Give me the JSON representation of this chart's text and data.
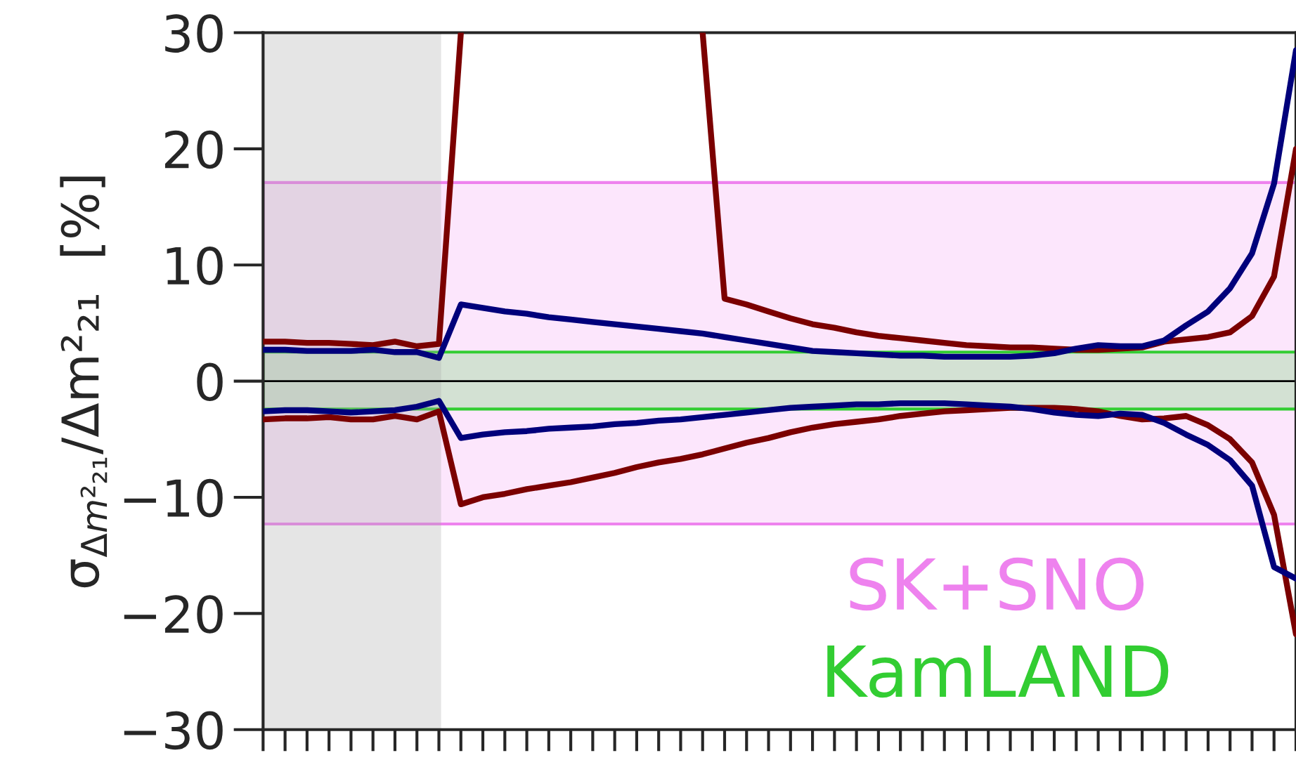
{
  "chart_data": {
    "type": "line",
    "ylabel": "σ$_{Δm²₂₁}$/Δm²₂₁  [%]",
    "categories": [
      null,
      null,
      null,
      null,
      null,
      null,
      null,
      null,
      null,
      null,
      null,
      null,
      null,
      null,
      null,
      null,
      null,
      null,
      null,
      null,
      null,
      null,
      null,
      null,
      null,
      null,
      null,
      null,
      null,
      null,
      null,
      null,
      null,
      null,
      null,
      null,
      null,
      null,
      null,
      null,
      null,
      null,
      null,
      null,
      null,
      null,
      null,
      null
    ],
    "ylim": [
      -30,
      30
    ],
    "yticks": [
      {
        "value": -30,
        "label": "−30"
      },
      {
        "value": -20,
        "label": "−20"
      },
      {
        "value": -10,
        "label": "−10"
      },
      0,
      10,
      20,
      30
    ],
    "tick_labels": "y",
    "line_style": "solid",
    "series": [
      {
        "color": "#7b0000",
        "values": [
          3.4,
          3.4,
          3.3,
          3.3,
          3.2,
          3.1,
          3.4,
          3.0,
          3.2,
          30,
          null,
          null,
          null,
          null,
          null,
          null,
          null,
          null,
          null,
          null,
          30,
          7.1,
          6.6,
          6.0,
          5.4,
          4.9,
          4.6,
          4.2,
          3.9,
          3.7,
          3.5,
          3.3,
          3.1,
          3.0,
          2.9,
          2.9,
          2.8,
          2.7,
          2.7,
          2.8,
          2.9,
          3.4,
          3.6,
          3.8,
          4.2,
          5.6,
          9.0,
          20
        ]
      },
      {
        "color": "#7b0000",
        "values": [
          -3.3,
          -3.2,
          -3.2,
          -3.1,
          -3.3,
          -3.3,
          -3.0,
          -3.3,
          -2.6,
          -10.6,
          -10.0,
          -9.7,
          -9.3,
          -9.0,
          -8.7,
          -8.3,
          -7.9,
          -7.4,
          -7.0,
          -6.7,
          -6.3,
          -5.8,
          -5.3,
          -4.9,
          -4.4,
          -4.0,
          -3.7,
          -3.5,
          -3.3,
          -3.0,
          -2.8,
          -2.6,
          -2.5,
          -2.4,
          -2.3,
          -2.3,
          -2.3,
          -2.4,
          -2.6,
          -3.0,
          -3.3,
          -3.2,
          -3.0,
          -3.8,
          -5.0,
          -7.0,
          -11.5,
          -21.8
        ]
      },
      {
        "color": "#00007b",
        "values": [
          2.7,
          2.7,
          2.6,
          2.6,
          2.6,
          2.7,
          2.5,
          2.5,
          2.0,
          6.6,
          6.3,
          6.0,
          5.8,
          5.5,
          5.3,
          5.1,
          4.9,
          4.7,
          4.5,
          4.3,
          4.1,
          3.8,
          3.5,
          3.2,
          2.9,
          2.6,
          2.5,
          2.4,
          2.3,
          2.2,
          2.2,
          2.1,
          2.1,
          2.1,
          2.1,
          2.2,
          2.4,
          2.8,
          3.1,
          3.0,
          3.0,
          3.5,
          4.8,
          6.0,
          8.0,
          11.0,
          17.0,
          28.5
        ]
      },
      {
        "color": "#00007b",
        "values": [
          -2.6,
          -2.5,
          -2.5,
          -2.6,
          -2.7,
          -2.6,
          -2.5,
          -2.2,
          -1.7,
          -4.9,
          -4.6,
          -4.4,
          -4.3,
          -4.1,
          -4.0,
          -3.9,
          -3.7,
          -3.6,
          -3.4,
          -3.3,
          -3.1,
          -2.9,
          -2.7,
          -2.5,
          -2.3,
          -2.2,
          -2.1,
          -2.0,
          -2.0,
          -1.9,
          -1.9,
          -1.9,
          -2.0,
          -2.1,
          -2.2,
          -2.4,
          -2.7,
          -2.9,
          -3.0,
          -2.8,
          -2.9,
          -3.6,
          -4.6,
          -5.5,
          -6.8,
          -9.0,
          -16.0,
          -17.0
        ]
      }
    ],
    "bands": [
      {
        "axis": "y",
        "from": -12.3,
        "to": 17.1,
        "color": "#ee82ee"
      },
      {
        "axis": "y",
        "from": -2.4,
        "to": 2.5,
        "color": "#32cd32"
      }
    ],
    "ref_lines": [
      {
        "axis": "y",
        "value": 0,
        "color": "#000000",
        "line_style": "solid"
      }
    ],
    "annotations": [
      "SK+SNO",
      "KamLAND"
    ]
  }
}
